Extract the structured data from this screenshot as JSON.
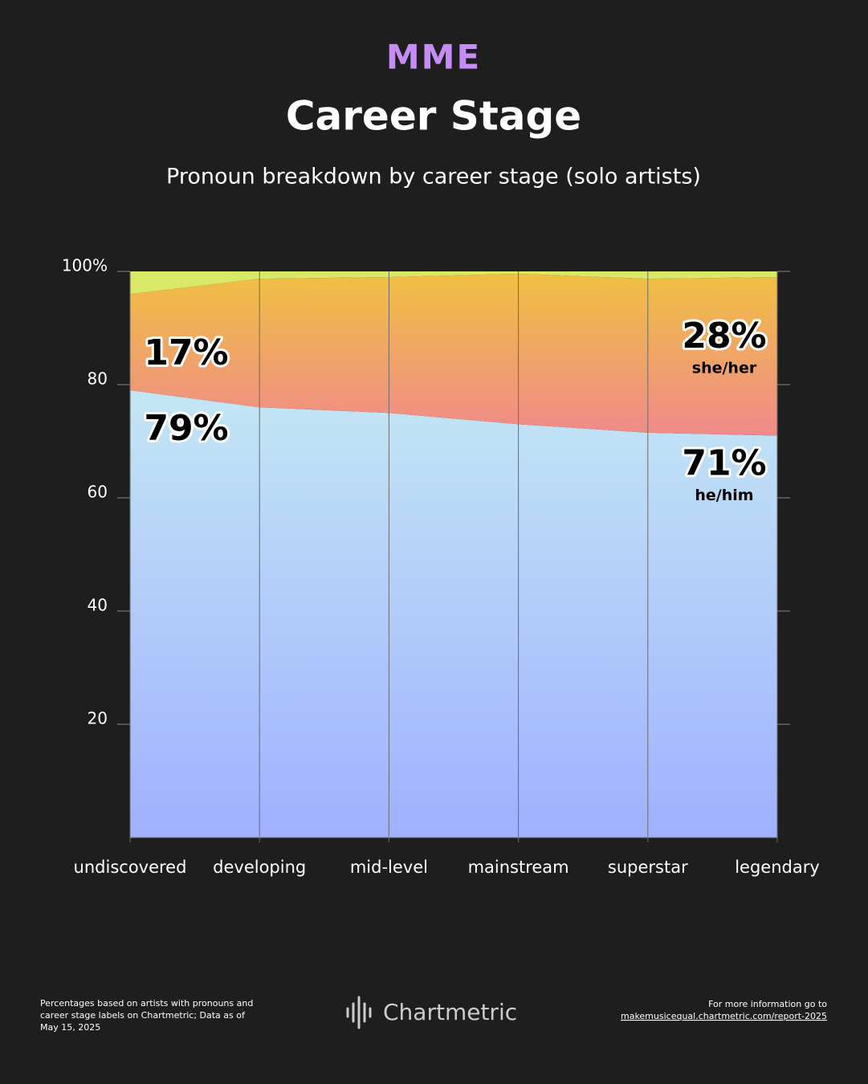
{
  "logo": "MME",
  "footer": {
    "note": "Percentages based on artists with pronouns and career stage labels on Chartmetric; Data as of May 15, 2025",
    "brand": "Chartmetric",
    "more": "For more information go to",
    "link": "makemusicequal.chartmetric.com/report-2025"
  },
  "chart_data": {
    "type": "stacked_area",
    "title": "Career Stage",
    "subtitle": "Pronoun breakdown by career stage (solo artists)",
    "categories": [
      "undiscovered",
      "developing",
      "mid-level",
      "mainstream",
      "superstar",
      "legendary"
    ],
    "series": [
      {
        "name": "he/him",
        "color": "#a3b3ff",
        "values": [
          79,
          76,
          75,
          73,
          71.5,
          71
        ],
        "value_labels": [
          "79%",
          null,
          null,
          null,
          null,
          "71%"
        ]
      },
      {
        "name": "she/her",
        "color": "#f08a88",
        "values": [
          17,
          22.7,
          24,
          26.6,
          27.2,
          28
        ],
        "value_labels": [
          "17%",
          null,
          null,
          null,
          null,
          "28%"
        ]
      },
      {
        "color": "#d9e866",
        "values": [
          4,
          1.3,
          1,
          0.4,
          1.3,
          1
        ]
      }
    ],
    "ylim": [
      0,
      100
    ],
    "yticks": [
      20,
      40,
      60,
      80,
      {
        "value": 100,
        "label": "100%"
      }
    ],
    "grid": true
  }
}
